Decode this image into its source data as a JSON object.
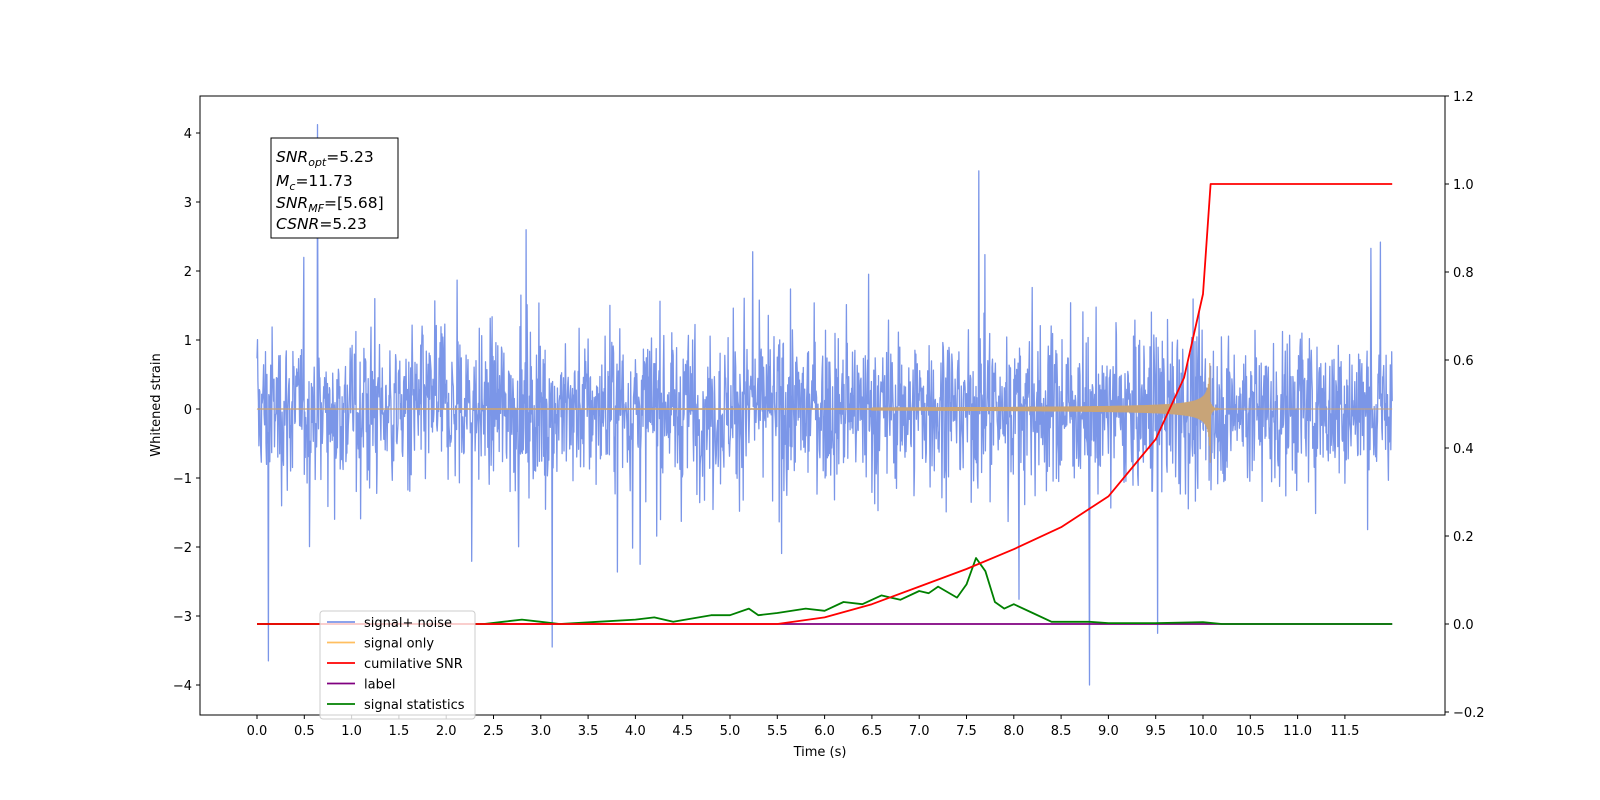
{
  "chart_data": {
    "type": "line",
    "title": "",
    "xlabel": "Time (s)",
    "ylabel": "Whitened strain",
    "y2label": "",
    "xlim": [
      -0.6,
      12.55
    ],
    "ylim": [
      -4.45,
      4.5
    ],
    "y2lim": [
      -0.2,
      1.2
    ],
    "xticks": [
      "0.0",
      "0.5",
      "1.0",
      "1.5",
      "2.0",
      "2.5",
      "3.0",
      "3.5",
      "4.0",
      "4.5",
      "5.0",
      "5.5",
      "6.0",
      "6.5",
      "7.0",
      "7.5",
      "8.0",
      "8.5",
      "9.0",
      "9.5",
      "10.0",
      "10.5",
      "11.0",
      "11.5"
    ],
    "yticks": [
      "4",
      "3",
      "2",
      "1",
      "0",
      "−1",
      "−2",
      "−3",
      "−4"
    ],
    "y2ticks": [
      "1.2",
      "1.0",
      "0.8",
      "0.6",
      "0.4",
      "0.2",
      "0.0",
      "−0.2"
    ],
    "grid": false,
    "legend_position": "lower-left",
    "colors": {
      "signal_noise": "#7b96e8",
      "signal_only_legend": "#ffbf60",
      "signal_only_trace": "#c8a478",
      "cumulative_snr": "#ff0000",
      "label": "#800080",
      "signal_statistics": "#008000"
    },
    "series": [
      {
        "name": "signal+ noise",
        "axis": "left",
        "x_range": [
          0.0,
          12.0
        ],
        "envelope_typical": [
          -1.8,
          1.8
        ],
        "peaks": [
          [
            0.12,
            -3.65
          ],
          [
            0.64,
            4.12
          ],
          [
            3.12,
            -3.45
          ],
          [
            7.63,
            3.45
          ],
          [
            8.8,
            -4.0
          ],
          [
            9.52,
            -3.25
          ]
        ]
      },
      {
        "name": "signal only",
        "axis": "left",
        "x_range": [
          0.0,
          12.0
        ],
        "chirp_end": 10.08,
        "peak_amplitude": 0.78
      },
      {
        "name": "cumilative SNR",
        "axis": "right",
        "x": [
          0.0,
          5.5,
          6.0,
          6.5,
          7.0,
          7.5,
          8.0,
          8.5,
          9.0,
          9.5,
          9.8,
          10.0,
          10.08,
          10.1,
          12.0
        ],
        "y": [
          0.0,
          0.0,
          0.015,
          0.045,
          0.085,
          0.125,
          0.17,
          0.22,
          0.29,
          0.42,
          0.56,
          0.75,
          1.0,
          1.0,
          1.0
        ]
      },
      {
        "name": "label",
        "axis": "right",
        "x": [
          0.0,
          12.0
        ],
        "y": [
          0.0,
          0.0
        ]
      },
      {
        "name": "signal statistics",
        "axis": "right",
        "x": [
          0.0,
          2.0,
          2.4,
          2.6,
          2.8,
          3.0,
          3.2,
          3.6,
          4.0,
          4.2,
          4.4,
          4.8,
          5.0,
          5.2,
          5.3,
          5.5,
          5.8,
          6.0,
          6.2,
          6.4,
          6.6,
          6.8,
          7.0,
          7.1,
          7.2,
          7.4,
          7.5,
          7.6,
          7.7,
          7.8,
          7.9,
          8.0,
          8.2,
          8.4,
          8.8,
          9.0,
          9.5,
          10.0,
          10.2,
          10.5,
          12.0
        ],
        "y": [
          0.0,
          0.0,
          0.0,
          0.005,
          0.01,
          0.005,
          0.0,
          0.005,
          0.01,
          0.015,
          0.005,
          0.02,
          0.02,
          0.035,
          0.02,
          0.025,
          0.035,
          0.03,
          0.05,
          0.045,
          0.065,
          0.055,
          0.075,
          0.07,
          0.085,
          0.06,
          0.09,
          0.15,
          0.12,
          0.05,
          0.035,
          0.045,
          0.025,
          0.005,
          0.005,
          0.002,
          0.002,
          0.004,
          0.0,
          0.0,
          0.0
        ]
      }
    ],
    "annotation": {
      "snr_opt": {
        "base": "SNR",
        "sub": "opt",
        "value": "=5.23"
      },
      "mc": {
        "base": "M",
        "sub": "c",
        "value": "=11.73"
      },
      "snr_mf": {
        "base": "SNR",
        "sub": "MF",
        "value": "=[5.68]"
      },
      "csnr": {
        "base": "CSNR",
        "value": "=5.23"
      }
    },
    "legend": [
      {
        "label": "signal+ noise",
        "color": "#7b96e8"
      },
      {
        "label": "signal only",
        "color": "#ffbf60"
      },
      {
        "label": "cumilative SNR",
        "color": "#ff0000"
      },
      {
        "label": "label",
        "color": "#800080"
      },
      {
        "label": "signal statistics",
        "color": "#008000"
      }
    ]
  }
}
